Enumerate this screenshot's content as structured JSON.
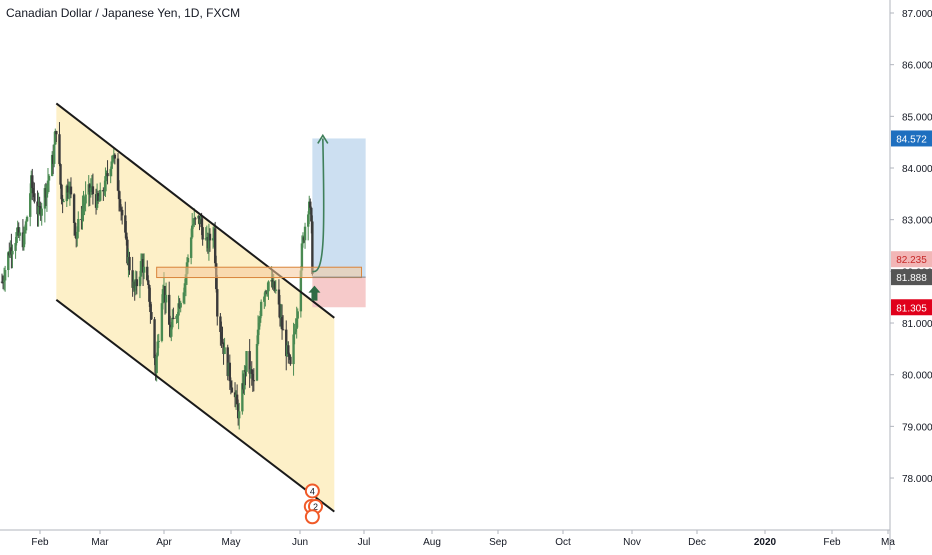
{
  "chart_data": {
    "type": "candlestick",
    "title": "Canadian Dollar / Japanese Yen, 1D, FXCM",
    "x_axis": {
      "labels": [
        "Feb",
        "Mar",
        "Apr",
        "May",
        "Jun",
        "Jul",
        "Aug",
        "Sep",
        "Oct",
        "Nov",
        "Dec",
        "2020",
        "Feb",
        "Ma"
      ],
      "range": [
        "2019-01-08",
        "2020-03-31"
      ]
    },
    "y_axis": {
      "ticks": [
        "87.000",
        "86.000",
        "85.000",
        "84.000",
        "83.000",
        "82.000",
        "81.000",
        "80.000",
        "79.000",
        "78.000"
      ],
      "ylim": [
        77.3,
        87.3
      ],
      "position": "right"
    },
    "price_labels": [
      {
        "value": 84.572,
        "text": "84.572",
        "color": "#1e6fbf"
      },
      {
        "value": 82.235,
        "text": "82.235",
        "color": "#f2b6b6",
        "text_color": "#c62828"
      },
      {
        "value": 81.888,
        "text": "81.888",
        "color": "#555555"
      },
      {
        "value": 81.305,
        "text": "81.305",
        "color": "#e0001b"
      }
    ],
    "channel": {
      "upper_line": [
        [
          "2019-03-01",
          85.25
        ],
        [
          "2019-11-22",
          81.1
        ]
      ],
      "lower_line": [
        [
          "2019-03-01",
          81.45
        ],
        [
          "2019-11-22",
          77.35
        ]
      ],
      "fill": "#fdf0c8"
    },
    "support_zone": {
      "x": [
        "2019-06-05",
        "2019-12-18"
      ],
      "y": [
        81.88,
        82.08
      ]
    },
    "long_position": {
      "x": [
        "2019-11-01",
        "2019-12-22"
      ],
      "entry": 81.888,
      "target": 84.572,
      "stop": 81.305,
      "profit_color": "#c6dcef",
      "loss_color": "#f6c7c7"
    },
    "projection_arrow": {
      "from": [
        "2019-11-01",
        82.0
      ],
      "to": [
        "2019-11-11",
        84.65
      ]
    },
    "up_arrow": {
      "at": [
        "2019-11-03",
        81.55
      ],
      "color": "#2f6b45"
    },
    "event_markers": [
      {
        "at": [
          "2019-11-01",
          77.75
        ],
        "text": "4"
      },
      {
        "at": [
          "2019-10-31",
          77.45
        ],
        "text": "4"
      },
      {
        "at": [
          "2019-11-04",
          77.45
        ],
        "text": "2"
      },
      {
        "at": [
          "2019-11-01",
          77.25
        ],
        "text": ""
      }
    ],
    "ohlc_path": [
      [
        "2019-01-08",
        81.8
      ],
      [
        "2019-01-15",
        82.4
      ],
      [
        "2019-01-22",
        82.7
      ],
      [
        "2019-01-29",
        82.6
      ],
      [
        "2019-02-05",
        83.7
      ],
      [
        "2019-02-12",
        83.1
      ],
      [
        "2019-02-19",
        83.6
      ],
      [
        "2019-02-26",
        84.2
      ],
      [
        "2019-03-01",
        84.8
      ],
      [
        "2019-03-06",
        83.4
      ],
      [
        "2019-03-13",
        83.7
      ],
      [
        "2019-03-20",
        82.7
      ],
      [
        "2019-03-27",
        83.3
      ],
      [
        "2019-04-03",
        83.6
      ],
      [
        "2019-04-10",
        83.3
      ],
      [
        "2019-04-17",
        83.7
      ],
      [
        "2019-04-24",
        84.3
      ],
      [
        "2019-05-01",
        83.4
      ],
      [
        "2019-05-08",
        82.3
      ],
      [
        "2019-05-15",
        81.6
      ],
      [
        "2019-05-22",
        82.2
      ],
      [
        "2019-05-29",
        81.5
      ],
      [
        "2019-06-04",
        80.1
      ],
      [
        "2019-06-11",
        81.8
      ],
      [
        "2019-06-18",
        80.8
      ],
      [
        "2019-06-25",
        81.3
      ],
      [
        "2019-07-02",
        81.8
      ],
      [
        "2019-07-09",
        82.9
      ],
      [
        "2019-07-16",
        83.0
      ],
      [
        "2019-07-23",
        82.5
      ],
      [
        "2019-07-30",
        82.8
      ],
      [
        "2019-08-02",
        81.3
      ],
      [
        "2019-08-09",
        80.4
      ],
      [
        "2019-08-16",
        79.8
      ],
      [
        "2019-08-23",
        79.2
      ],
      [
        "2019-08-30",
        80.3
      ],
      [
        "2019-09-06",
        79.8
      ],
      [
        "2019-09-13",
        81.5
      ],
      [
        "2019-09-20",
        81.8
      ],
      [
        "2019-09-27",
        81.6
      ],
      [
        "2019-10-04",
        80.8
      ],
      [
        "2019-10-11",
        80.1
      ],
      [
        "2019-10-18",
        81.4
      ],
      [
        "2019-10-22",
        82.4
      ],
      [
        "2019-10-25",
        82.9
      ],
      [
        "2019-10-29",
        83.4
      ],
      [
        "2019-10-31",
        82.8
      ],
      [
        "2019-11-01",
        82.1
      ]
    ]
  }
}
